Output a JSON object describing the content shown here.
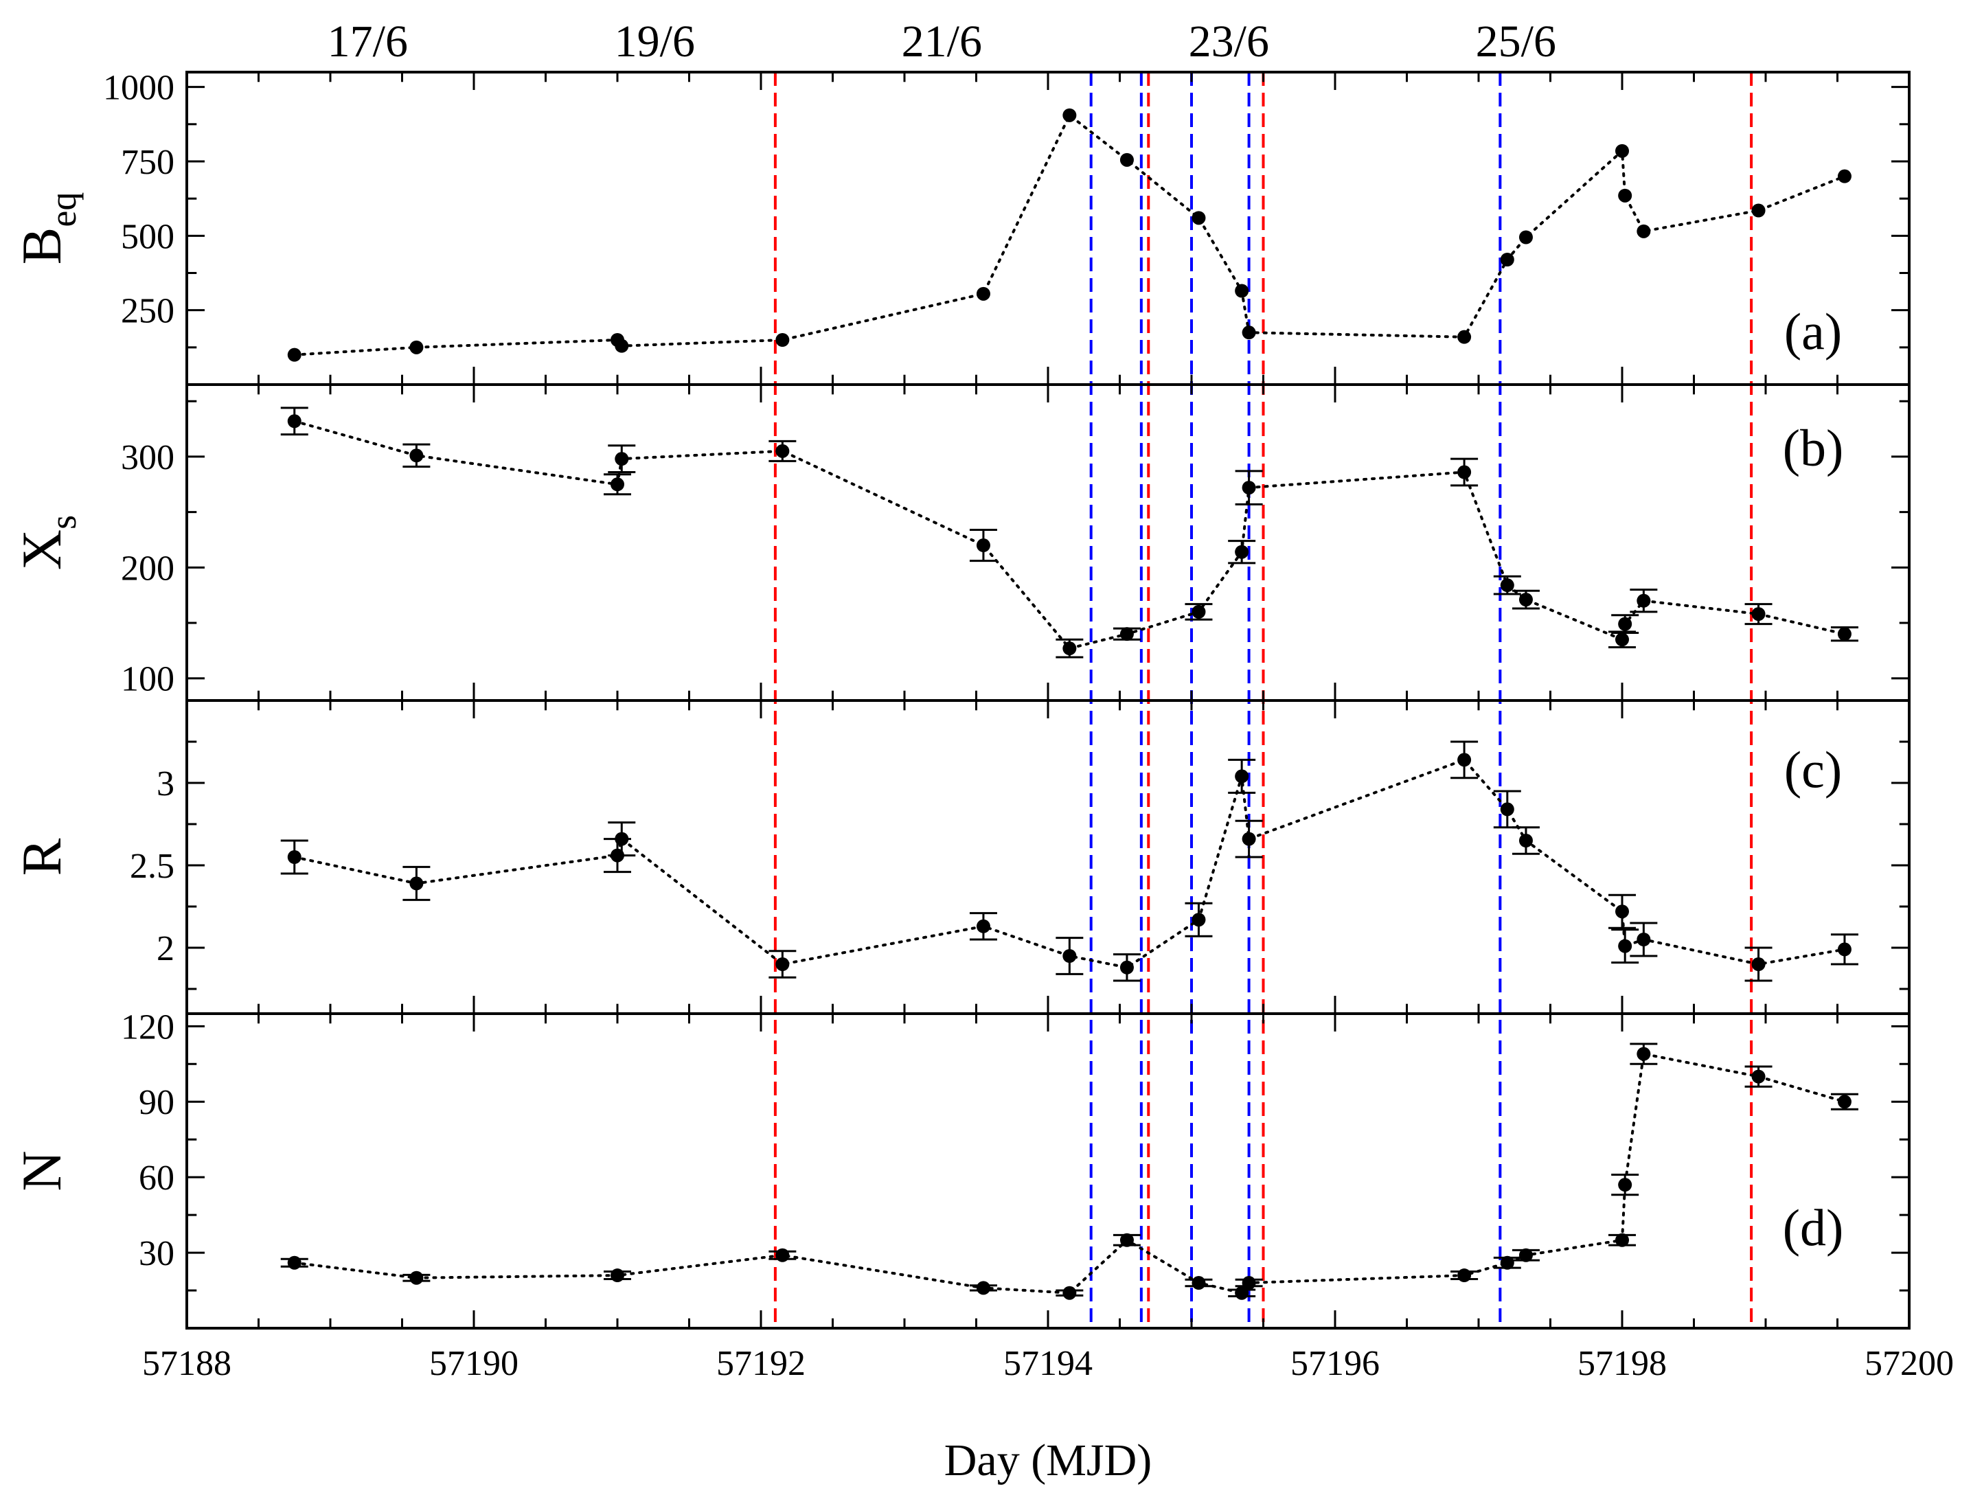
{
  "chart_data": {
    "type": "scatter",
    "xlabel": "Day (MJD)",
    "xlim": [
      57188,
      57200
    ],
    "x_ticks": [
      57188,
      57190,
      57192,
      57194,
      57196,
      57198,
      57200
    ],
    "top_axis_labels": [
      {
        "x": 57189.26,
        "label": "17/6"
      },
      {
        "x": 57191.26,
        "label": "19/6"
      },
      {
        "x": 57193.26,
        "label": "21/6"
      },
      {
        "x": 57195.26,
        "label": "23/6"
      },
      {
        "x": 57197.26,
        "label": "25/6"
      }
    ],
    "vertical_lines": {
      "red": [
        57192.1,
        57194.7,
        57195.5,
        57198.9
      ],
      "blue": [
        57194.3,
        57194.65,
        57195.0,
        57195.4,
        57197.15
      ],
      "red_color": "#ff0000",
      "blue_color": "#0000ff"
    },
    "panels": [
      {
        "id": "a",
        "label": "(a)",
        "ylabel": "B",
        "ylabel_sub": "eq",
        "ylim": [
          0,
          1050
        ],
        "y_ticks": [
          250,
          500,
          750,
          1000
        ],
        "y_tick_labels": [
          "250",
          "500",
          "750",
          "1000"
        ],
        "x": [
          57188.75,
          57189.6,
          57191.0,
          57191.03,
          57192.15,
          57193.55,
          57194.15,
          57194.55,
          57195.05,
          57195.35,
          57195.4,
          57196.9,
          57197.2,
          57197.33,
          57198.0,
          57198.02,
          57198.15,
          57198.95,
          57199.55
        ],
        "y": [
          100,
          125,
          150,
          130,
          150,
          305,
          905,
          755,
          560,
          315,
          175,
          160,
          420,
          495,
          785,
          635,
          515,
          585,
          700
        ],
        "err": [
          0,
          0,
          0,
          0,
          0,
          0,
          0,
          0,
          0,
          0,
          0,
          0,
          0,
          0,
          0,
          0,
          0,
          0,
          0
        ]
      },
      {
        "id": "b",
        "label": "(b)",
        "ylabel": "X",
        "ylabel_sub": "s",
        "ylim": [
          80,
          365
        ],
        "y_ticks": [
          100,
          200,
          300
        ],
        "y_tick_labels": [
          "100",
          "200",
          "300"
        ],
        "x": [
          57188.75,
          57189.6,
          57191.0,
          57191.03,
          57192.15,
          57193.55,
          57194.15,
          57194.55,
          57195.05,
          57195.35,
          57195.4,
          57196.9,
          57197.2,
          57197.33,
          57198.0,
          57198.02,
          57198.15,
          57198.95,
          57199.55
        ],
        "y": [
          332,
          301,
          275,
          298,
          305,
          220,
          127,
          140,
          160,
          214,
          272,
          286,
          184,
          171,
          135,
          149,
          170,
          158,
          140
        ],
        "err": [
          12,
          10,
          9,
          12,
          9,
          14,
          8,
          5,
          7,
          10,
          15,
          12,
          8,
          8,
          7,
          8,
          10,
          9,
          6
        ]
      },
      {
        "id": "c",
        "label": "(c)",
        "ylabel": "R",
        "ylabel_sub": "",
        "ylim": [
          1.6,
          3.5
        ],
        "y_ticks": [
          2,
          2.5,
          3
        ],
        "y_tick_labels": [
          "2",
          "2.5",
          "3"
        ],
        "x": [
          57188.75,
          57189.6,
          57191.0,
          57191.03,
          57192.15,
          57193.55,
          57194.15,
          57194.55,
          57195.05,
          57195.35,
          57195.4,
          57196.9,
          57197.2,
          57197.33,
          57198.0,
          57198.02,
          57198.15,
          57198.95,
          57199.55
        ],
        "y": [
          2.55,
          2.39,
          2.56,
          2.66,
          1.9,
          2.13,
          1.95,
          1.88,
          2.17,
          3.04,
          2.66,
          3.14,
          2.84,
          2.65,
          2.22,
          2.01,
          2.05,
          1.9,
          1.99
        ],
        "err": [
          0.1,
          0.1,
          0.1,
          0.1,
          0.08,
          0.08,
          0.11,
          0.08,
          0.1,
          0.1,
          0.11,
          0.11,
          0.11,
          0.08,
          0.1,
          0.1,
          0.1,
          0.1,
          0.09
        ]
      },
      {
        "id": "d",
        "label": "(d)",
        "ylabel": "N",
        "ylabel_sub": "",
        "ylim": [
          0,
          125
        ],
        "y_ticks": [
          30,
          60,
          90,
          120
        ],
        "y_tick_labels": [
          "30",
          "60",
          "90",
          "120"
        ],
        "x": [
          57188.75,
          57189.6,
          57191.0,
          57192.15,
          57193.55,
          57194.15,
          57194.55,
          57195.05,
          57195.35,
          57195.4,
          57196.9,
          57197.2,
          57197.33,
          57198.0,
          57198.02,
          57198.15,
          57198.95,
          57199.55
        ],
        "y": [
          26,
          20,
          21,
          29,
          16,
          14,
          35,
          18,
          14,
          18,
          21,
          26,
          29,
          35,
          57,
          109,
          100,
          90
        ],
        "err": [
          1.5,
          1.2,
          1.5,
          1.5,
          1.0,
          1.0,
          2.0,
          1.3,
          1.3,
          1.3,
          1.5,
          2.0,
          2.0,
          2.0,
          4.0,
          4.0,
          4.0,
          3.0
        ]
      }
    ]
  }
}
